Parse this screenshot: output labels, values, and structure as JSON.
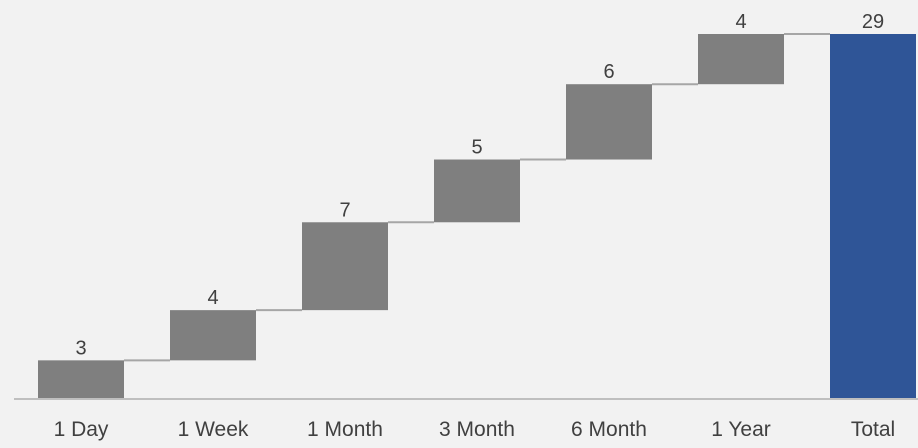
{
  "chart_data": {
    "type": "waterfall",
    "categories": [
      "1 Day",
      "1 Week",
      "1 Month",
      "3 Month",
      "6 Month",
      "1 Year",
      "Total"
    ],
    "values": [
      3,
      4,
      7,
      5,
      6,
      4,
      29
    ],
    "total_index": 6,
    "title": "",
    "xlabel": "",
    "ylabel": "",
    "ylim": [
      0,
      29
    ],
    "grid": false,
    "legend": "none",
    "colors": {
      "increment": "#7f7f7f",
      "total": "#2f5597",
      "connector": "#a6a6a6",
      "axis": "#bfbfbf",
      "text": "#404040",
      "background": "#f2f2f2"
    }
  }
}
